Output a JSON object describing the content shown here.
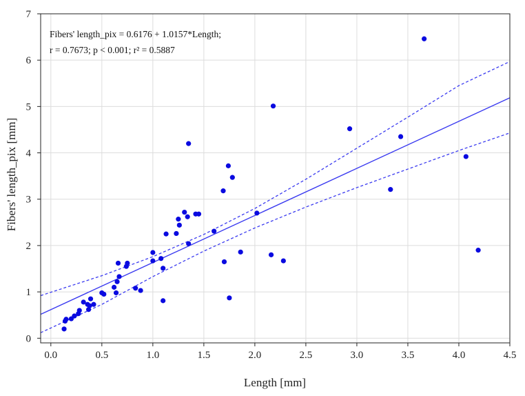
{
  "chart_data": {
    "type": "scatter",
    "xlabel": "Length [mm]",
    "ylabel": "Fibers' length_pix [mm]",
    "xlim": [
      -0.1,
      4.5
    ],
    "ylim": [
      -0.1,
      7
    ],
    "xticks": [
      "0.0",
      "0.5",
      "1.0",
      "1.5",
      "2.0",
      "2.5",
      "3.0",
      "3.5",
      "4.0",
      "4.5"
    ],
    "yticks": [
      "0",
      "1",
      "2",
      "3",
      "4",
      "5",
      "6",
      "7"
    ],
    "grid": true,
    "annotation_line1": "Fibers' length_pix = 0.6176 + 1.0157*Length;",
    "annotation_line2": "r = 0.7673; p < 0.001; r² = 0.5887",
    "regression": {
      "intercept": 0.6176,
      "slope": 1.0157
    },
    "confidence_band": {
      "upper": [
        [
          -0.1,
          0.92
        ],
        [
          0.5,
          1.35
        ],
        [
          1.0,
          1.76
        ],
        [
          1.5,
          2.24
        ],
        [
          2.0,
          2.8
        ],
        [
          2.5,
          3.43
        ],
        [
          3.0,
          4.1
        ],
        [
          3.5,
          4.77
        ],
        [
          4.0,
          5.45
        ],
        [
          4.5,
          5.97
        ]
      ],
      "lower": [
        [
          -0.1,
          0.12
        ],
        [
          0.5,
          0.73
        ],
        [
          1.0,
          1.33
        ],
        [
          1.5,
          1.88
        ],
        [
          2.0,
          2.38
        ],
        [
          2.5,
          2.83
        ],
        [
          3.0,
          3.25
        ],
        [
          3.5,
          3.65
        ],
        [
          4.0,
          4.05
        ],
        [
          4.5,
          4.43
        ]
      ]
    },
    "line_color": "#3a3af0",
    "point_color": "#0a0ae0",
    "points": [
      [
        0.13,
        0.2
      ],
      [
        0.14,
        0.37
      ],
      [
        0.15,
        0.41
      ],
      [
        0.2,
        0.42
      ],
      [
        0.23,
        0.48
      ],
      [
        0.27,
        0.53
      ],
      [
        0.28,
        0.6
      ],
      [
        0.32,
        0.78
      ],
      [
        0.36,
        0.73
      ],
      [
        0.37,
        0.62
      ],
      [
        0.38,
        0.7
      ],
      [
        0.39,
        0.85
      ],
      [
        0.42,
        0.73
      ],
      [
        0.5,
        0.98
      ],
      [
        0.52,
        0.95
      ],
      [
        0.62,
        1.1
      ],
      [
        0.64,
        0.98
      ],
      [
        0.65,
        1.22
      ],
      [
        0.66,
        1.62
      ],
      [
        0.67,
        1.33
      ],
      [
        0.74,
        1.55
      ],
      [
        0.75,
        1.62
      ],
      [
        0.83,
        1.08
      ],
      [
        0.88,
        1.03
      ],
      [
        1.0,
        1.85
      ],
      [
        1.0,
        1.67
      ],
      [
        1.08,
        1.72
      ],
      [
        1.1,
        1.51
      ],
      [
        1.1,
        0.81
      ],
      [
        1.13,
        2.25
      ],
      [
        1.23,
        2.26
      ],
      [
        1.25,
        2.57
      ],
      [
        1.26,
        2.44
      ],
      [
        1.31,
        2.72
      ],
      [
        1.34,
        2.62
      ],
      [
        1.35,
        2.04
      ],
      [
        1.35,
        4.2
      ],
      [
        1.42,
        2.68
      ],
      [
        1.45,
        2.68
      ],
      [
        1.6,
        2.31
      ],
      [
        1.69,
        3.18
      ],
      [
        1.7,
        1.65
      ],
      [
        1.74,
        3.72
      ],
      [
        1.75,
        0.87
      ],
      [
        1.78,
        3.47
      ],
      [
        1.86,
        1.86
      ],
      [
        2.02,
        2.7
      ],
      [
        2.16,
        1.8
      ],
      [
        2.18,
        5.01
      ],
      [
        2.28,
        1.67
      ],
      [
        2.93,
        4.52
      ],
      [
        3.33,
        3.21
      ],
      [
        3.43,
        4.35
      ],
      [
        3.66,
        6.46
      ],
      [
        4.07,
        3.92
      ],
      [
        4.19,
        1.9
      ]
    ]
  }
}
